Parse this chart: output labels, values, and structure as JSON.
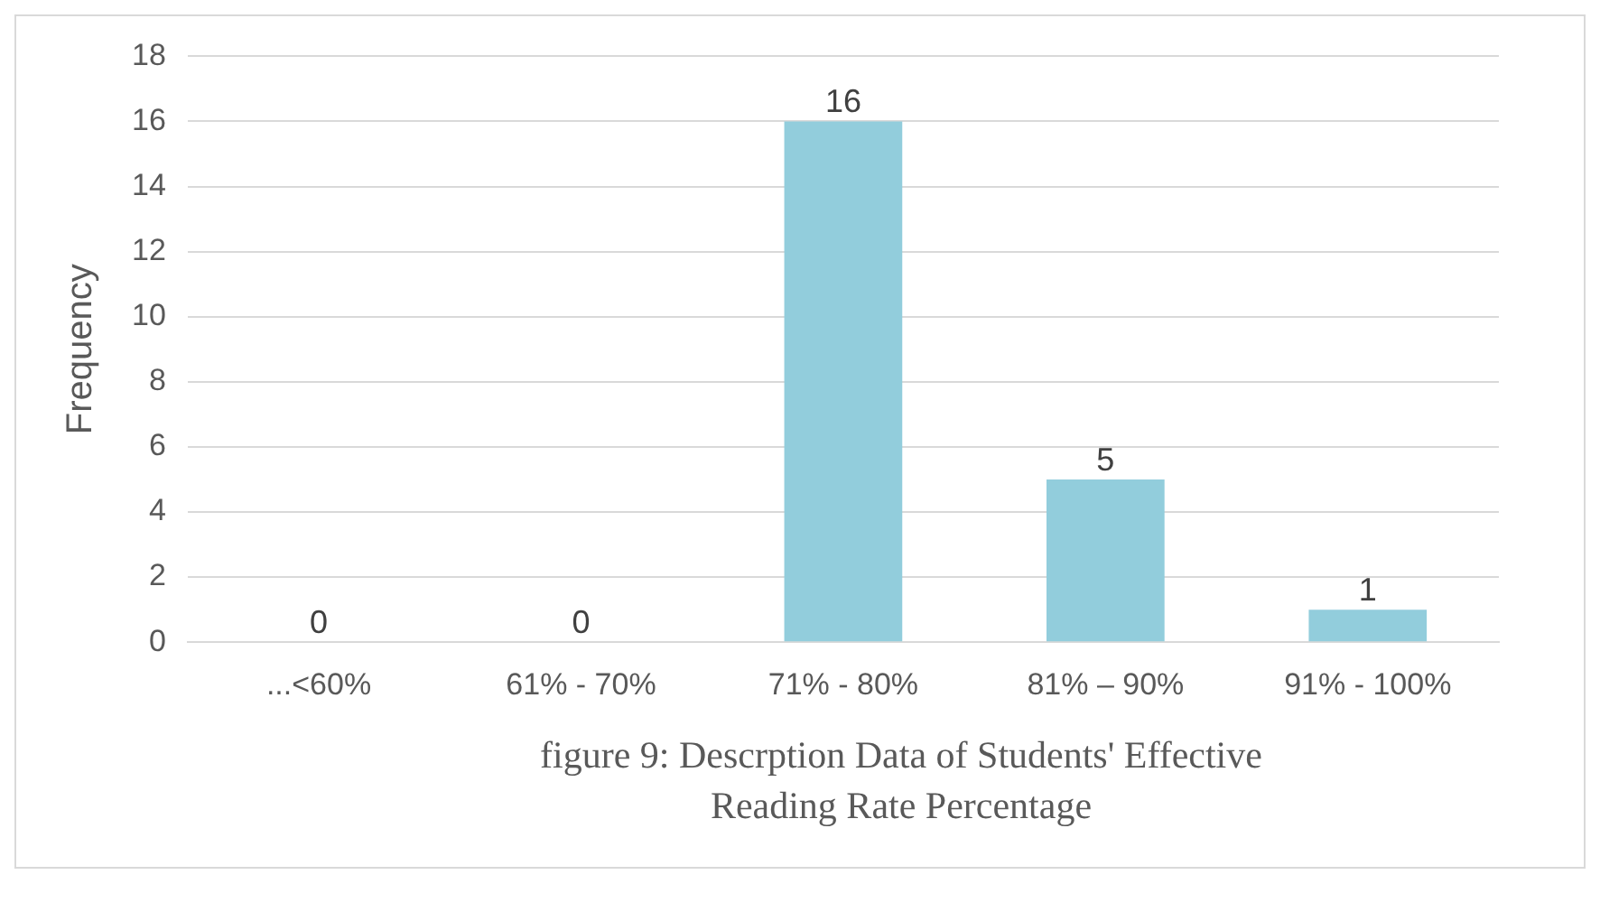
{
  "chart_data": {
    "type": "bar",
    "xlabel": "figure 9: Descrption Data of Students' Effective Reading Rate Percentage",
    "ylabel": "Frequency",
    "categories": [
      "...<60%",
      "61% - 70%",
      "71% - 80%",
      "81% – 90%",
      "91% - 100%"
    ],
    "values": [
      0,
      0,
      16,
      5,
      1
    ],
    "color": "#92cddc",
    "ylim": [
      0,
      18
    ],
    "yticks": [
      0,
      2,
      4,
      6,
      8,
      10,
      12,
      14,
      16,
      18
    ],
    "grid": "y",
    "legend": false,
    "data_labels": true
  }
}
